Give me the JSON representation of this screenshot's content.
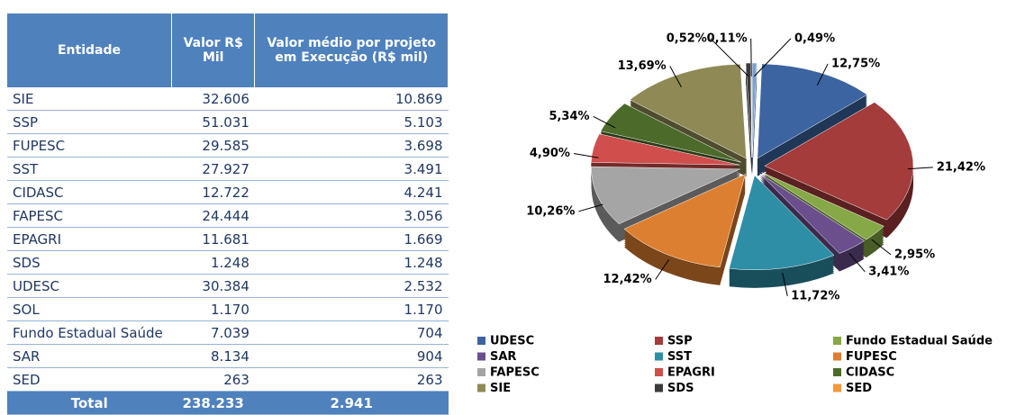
{
  "table": {
    "header": [
      "Entidade",
      "Valor R$ Mil",
      "Valor médio por projeto em Execução (R$ mil)"
    ],
    "rows": [
      [
        "SIE",
        "32.606",
        "10.869"
      ],
      [
        "SSP",
        "51.031",
        "5.103"
      ],
      [
        "FUPESC",
        "29.585",
        "3.698"
      ],
      [
        "SST",
        "27.927",
        "3.491"
      ],
      [
        "CIDASC",
        "12.722",
        "4.241"
      ],
      [
        "FAPESC",
        "24.444",
        "3.056"
      ],
      [
        "EPAGRI",
        "11.681",
        "1.669"
      ],
      [
        "SDS",
        "1.248",
        "1.248"
      ],
      [
        "UDESC",
        "30.384",
        "2.532"
      ],
      [
        "SOL",
        "1.170",
        "1.170"
      ],
      [
        "Fundo Estadual Saúde",
        "7.039",
        "704"
      ],
      [
        "SAR",
        "8.134",
        "904"
      ],
      [
        "SED",
        "263",
        "263"
      ]
    ],
    "total": [
      "Total",
      "238.233",
      "2.941"
    ]
  },
  "chart_data": {
    "type": "pie",
    "categories": [
      "UDESC",
      "SSP",
      "Fundo Estadual Saúde",
      "SAR",
      "SST",
      "FUPESC",
      "FAPESC",
      "EPAGRI",
      "CIDASC",
      "SIE",
      "SDS",
      "SED",
      null
    ],
    "values": [
      12.75,
      21.42,
      2.95,
      3.41,
      11.72,
      12.42,
      10.26,
      4.9,
      5.34,
      13.69,
      0.52,
      0.11,
      0.49
    ],
    "value_labels": [
      "12,75%",
      "21,42%",
      "2,95%",
      "3,41%",
      "11,72%",
      "12,42%",
      "10,26%",
      "4,90%",
      "5,34%",
      "13,69%",
      "0,52%",
      "0,11%",
      "0,49%"
    ],
    "colors": [
      "#3c64a0",
      "#a33c3a",
      "#86a846",
      "#6a4f8c",
      "#2e8ea6",
      "#dd7f30",
      "#a5a5a5",
      "#d04e4c",
      "#4c6a2a",
      "#8f8a55",
      "#3b3b3b",
      "#f3993c",
      "#7a9fd0"
    ]
  }
}
